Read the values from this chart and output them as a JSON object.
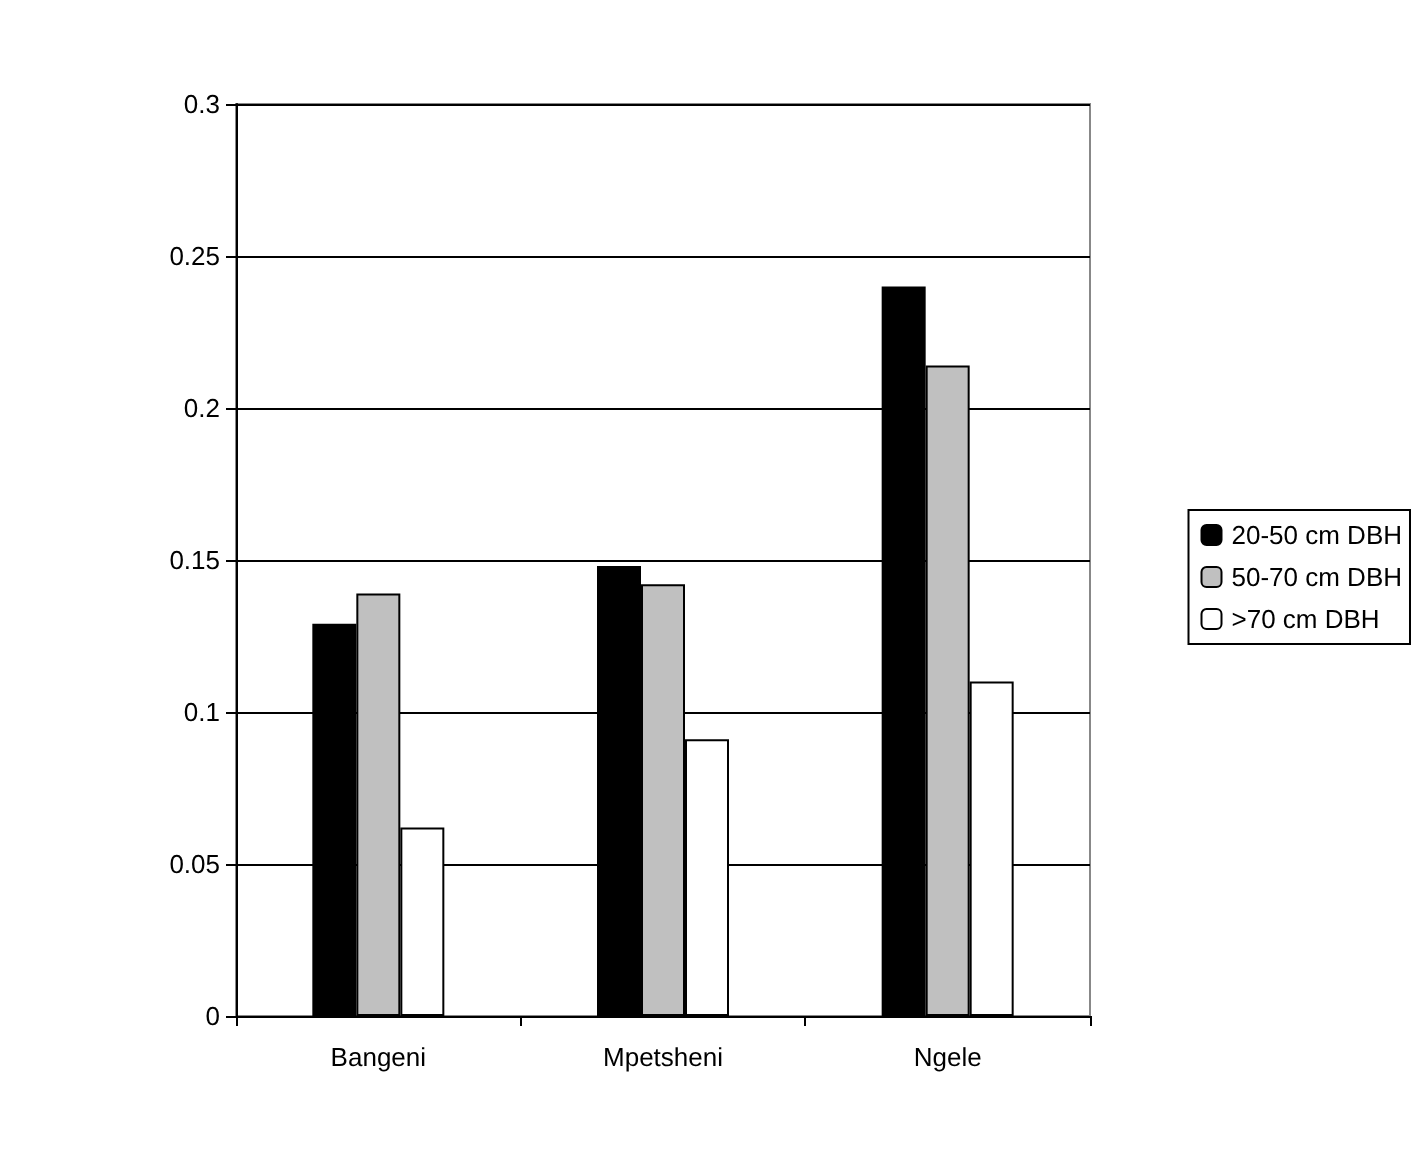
{
  "chart_data": {
    "type": "bar",
    "categories": [
      "Bangeni",
      "Mpetsheni",
      "Ngele"
    ],
    "series": [
      {
        "name": "20-50 cm DBH",
        "color": "#000000",
        "values": [
          0.129,
          0.148,
          0.24
        ]
      },
      {
        "name": "50-70 cm DBH",
        "color": "#c0c0c0",
        "values": [
          0.139,
          0.142,
          0.214
        ]
      },
      {
        "name": ">70 cm DBH",
        "color": "#ffffff",
        "values": [
          0.062,
          0.091,
          0.11
        ]
      }
    ],
    "ylim": [
      0,
      0.3
    ],
    "yticks": [
      0,
      0.05,
      0.1,
      0.15,
      0.2,
      0.25,
      0.3
    ],
    "grid": "y",
    "legend": "right"
  }
}
